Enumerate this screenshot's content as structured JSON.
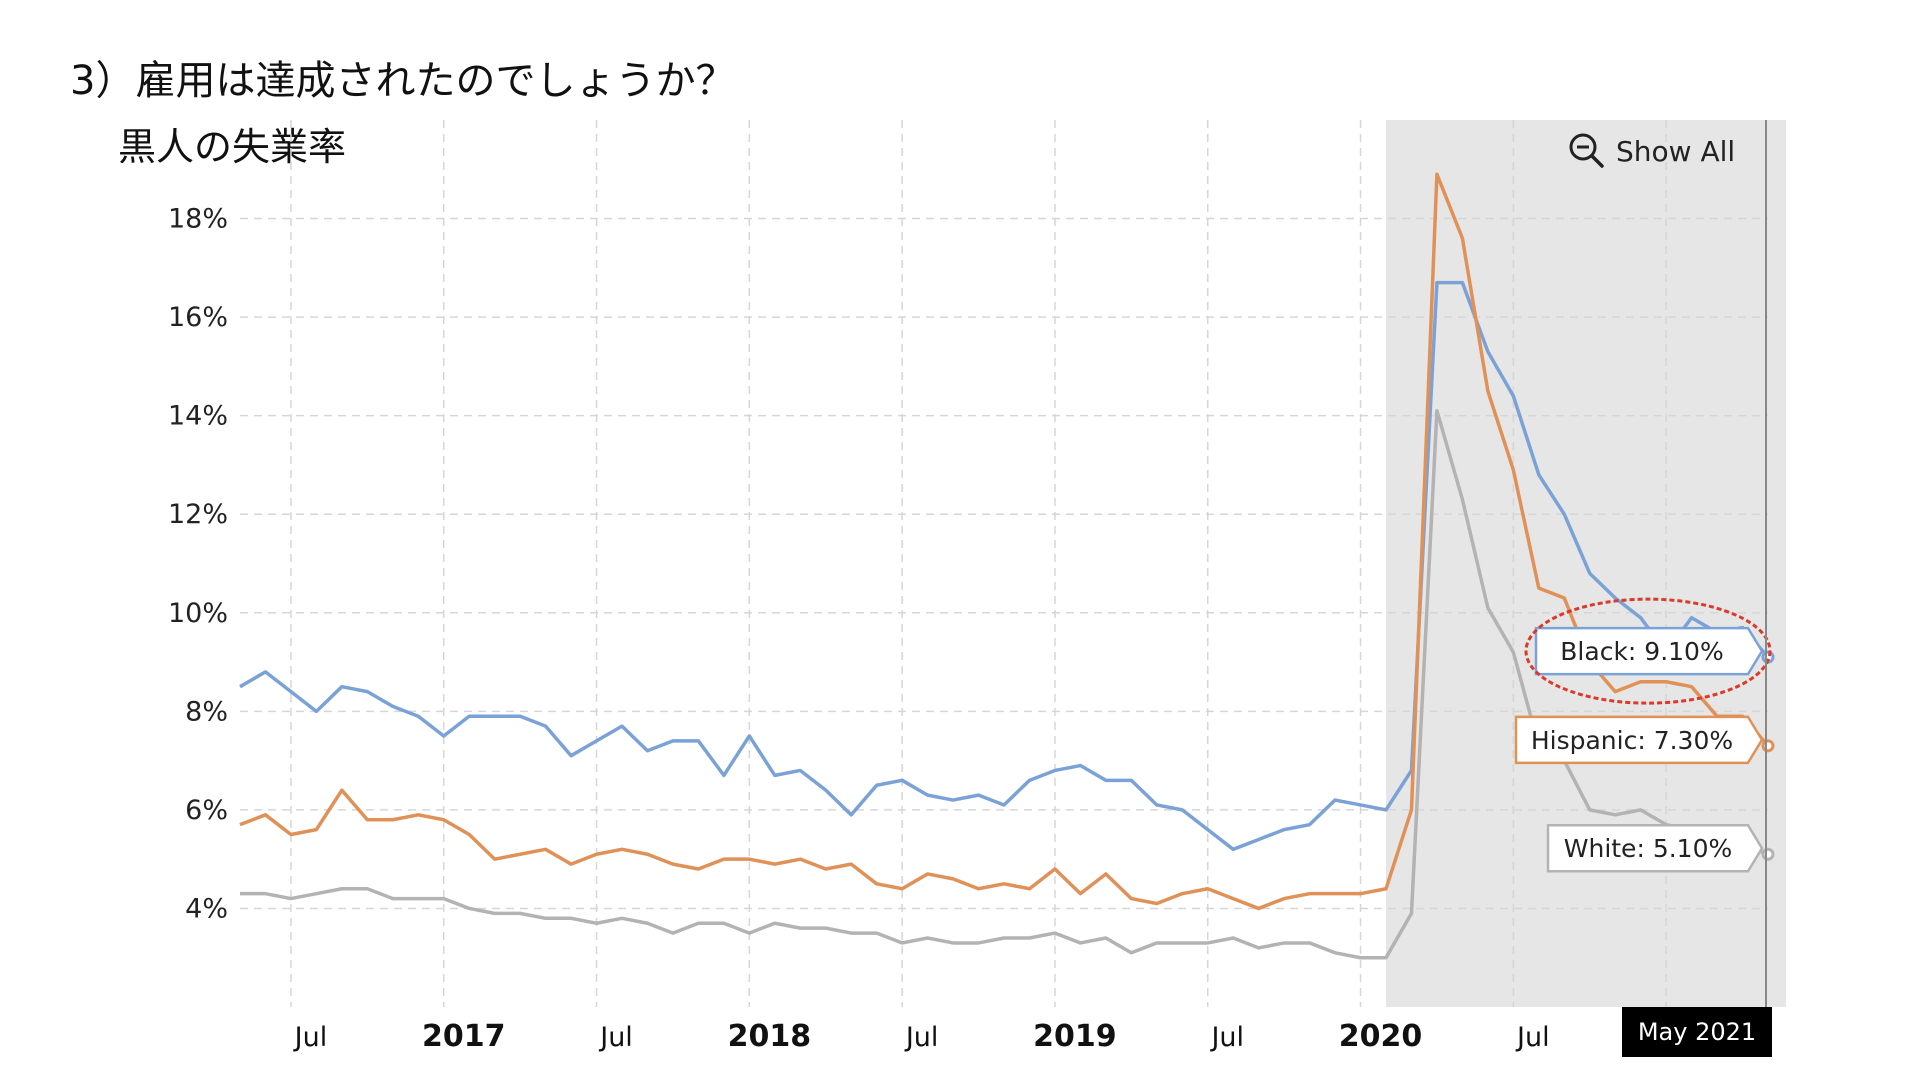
{
  "page": {
    "heading": "3）雇用は達成されたのでしょうか？",
    "subheading": "黒人の失業率"
  },
  "controls": {
    "show_all_label": "Show All",
    "zoom_icon": "zoom-out-icon"
  },
  "navigator_label": "May 2021",
  "colors": {
    "black": "#7ba2d6",
    "hispanic": "#e09158",
    "white": "#b3b3b3",
    "shade": "#e6e6e6",
    "grid": "#d6d6d6",
    "annotation": "#d93a2b"
  },
  "chart_data": {
    "type": "line",
    "title": "",
    "x_tick_labels": [
      {
        "label": "Jul",
        "date": "2016-07",
        "bold": false
      },
      {
        "label": "2017",
        "date": "2017-01",
        "bold": true
      },
      {
        "label": "Jul",
        "date": "2017-07",
        "bold": false
      },
      {
        "label": "2018",
        "date": "2018-01",
        "bold": true
      },
      {
        "label": "Jul",
        "date": "2018-07",
        "bold": false
      },
      {
        "label": "2019",
        "date": "2019-01",
        "bold": true
      },
      {
        "label": "Jul",
        "date": "2019-07",
        "bold": false
      },
      {
        "label": "2020",
        "date": "2020-01",
        "bold": true
      },
      {
        "label": "Jul",
        "date": "2020-07",
        "bold": false
      }
    ],
    "y_tick_labels": [
      "4%",
      "6%",
      "8%",
      "10%",
      "12%",
      "14%",
      "16%",
      "18%"
    ],
    "y_ticks": [
      4,
      6,
      8,
      10,
      12,
      14,
      16,
      18
    ],
    "ylim": [
      2,
      20
    ],
    "xlim": [
      "2016-05",
      "2021-05"
    ],
    "x_grid_dates": [
      "2016-07",
      "2017-01",
      "2017-07",
      "2018-01",
      "2018-07",
      "2019-01",
      "2019-07",
      "2020-01",
      "2020-07",
      "2021-01"
    ],
    "grid": true,
    "shaded_range": [
      "2020-02",
      "2021-05"
    ],
    "x_start": "2016-05",
    "series": [
      {
        "name": "Black",
        "color_key": "black",
        "end_label": "Black: 9.10%",
        "values": [
          8.5,
          8.8,
          8.4,
          8.0,
          8.5,
          8.4,
          8.1,
          7.9,
          7.5,
          7.9,
          7.9,
          7.9,
          7.7,
          7.1,
          7.4,
          7.7,
          7.2,
          7.4,
          7.4,
          6.7,
          7.5,
          6.7,
          6.8,
          6.4,
          5.9,
          6.5,
          6.6,
          6.3,
          6.2,
          6.3,
          6.1,
          6.6,
          6.8,
          6.9,
          6.6,
          6.6,
          6.1,
          6.0,
          5.6,
          5.2,
          5.4,
          5.6,
          5.7,
          6.2,
          6.1,
          6.0,
          6.8,
          16.7,
          16.7,
          15.3,
          14.4,
          12.8,
          12.0,
          10.8,
          10.3,
          9.9,
          9.2,
          9.9,
          9.6,
          9.7,
          9.1
        ]
      },
      {
        "name": "Hispanic",
        "color_key": "hispanic",
        "end_label": "Hispanic: 7.30%",
        "values": [
          5.7,
          5.9,
          5.5,
          5.6,
          6.4,
          5.8,
          5.8,
          5.9,
          5.8,
          5.5,
          5.0,
          5.1,
          5.2,
          4.9,
          5.1,
          5.2,
          5.1,
          4.9,
          4.8,
          5.0,
          5.0,
          4.9,
          5.0,
          4.8,
          4.9,
          4.5,
          4.4,
          4.7,
          4.6,
          4.4,
          4.5,
          4.4,
          4.8,
          4.3,
          4.7,
          4.2,
          4.1,
          4.3,
          4.4,
          4.2,
          4.0,
          4.2,
          4.3,
          4.3,
          4.3,
          4.4,
          6.0,
          18.9,
          17.6,
          14.5,
          12.9,
          10.5,
          10.3,
          9.0,
          8.4,
          8.6,
          8.6,
          8.5,
          7.9,
          7.9,
          7.3
        ]
      },
      {
        "name": "White",
        "color_key": "white",
        "end_label": "White: 5.10%",
        "values": [
          4.3,
          4.3,
          4.2,
          4.3,
          4.4,
          4.4,
          4.2,
          4.2,
          4.2,
          4.0,
          3.9,
          3.9,
          3.8,
          3.8,
          3.7,
          3.8,
          3.7,
          3.5,
          3.7,
          3.7,
          3.5,
          3.7,
          3.6,
          3.6,
          3.5,
          3.5,
          3.3,
          3.4,
          3.3,
          3.3,
          3.4,
          3.4,
          3.5,
          3.3,
          3.4,
          3.1,
          3.3,
          3.3,
          3.3,
          3.4,
          3.2,
          3.3,
          3.3,
          3.1,
          3.0,
          3.0,
          3.9,
          14.1,
          12.3,
          10.1,
          9.2,
          7.3,
          7.0,
          6.0,
          5.9,
          6.0,
          5.7,
          5.6,
          5.5,
          5.3,
          5.1
        ]
      }
    ]
  }
}
